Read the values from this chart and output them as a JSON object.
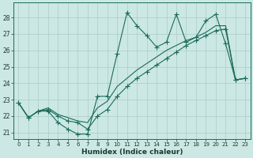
{
  "xlabel": "Humidex (Indice chaleur)",
  "bg_color": "#cce8e4",
  "line_color": "#1a6b5a",
  "grid_color": "#b0d0cc",
  "xlim": [
    -0.5,
    23.5
  ],
  "ylim": [
    20.6,
    28.9
  ],
  "xticks": [
    0,
    1,
    2,
    3,
    4,
    5,
    6,
    7,
    8,
    9,
    10,
    11,
    12,
    13,
    14,
    15,
    16,
    17,
    18,
    19,
    20,
    21,
    22,
    23
  ],
  "yticks": [
    21,
    22,
    23,
    24,
    25,
    26,
    27,
    28
  ],
  "series_max": [
    22.8,
    21.9,
    22.3,
    22.3,
    21.6,
    21.2,
    20.9,
    20.9,
    23.2,
    23.2,
    25.8,
    28.3,
    27.5,
    26.9,
    26.2,
    26.5,
    28.2,
    26.5,
    26.8,
    27.8,
    28.2,
    26.4,
    24.2,
    24.3
  ],
  "series_min": [
    22.8,
    21.9,
    22.3,
    22.4,
    22.0,
    21.7,
    21.6,
    21.2,
    22.0,
    22.4,
    23.2,
    23.8,
    24.3,
    24.7,
    25.1,
    25.5,
    25.9,
    26.3,
    26.6,
    26.9,
    27.2,
    27.3,
    24.2,
    24.3
  ],
  "series_avg": [
    22.8,
    21.9,
    22.3,
    22.5,
    22.1,
    21.9,
    21.7,
    21.6,
    22.5,
    22.9,
    23.8,
    24.3,
    24.8,
    25.2,
    25.6,
    26.0,
    26.3,
    26.6,
    26.8,
    27.1,
    27.5,
    27.5,
    24.2,
    24.3
  ],
  "markersize": 3.5
}
